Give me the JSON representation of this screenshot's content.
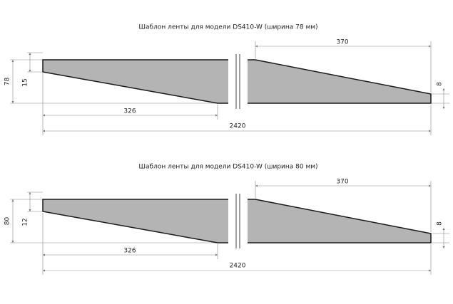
{
  "templates": [
    {
      "title": "Шаблон ленты для модели DS410-W (ширина 78 мм)",
      "height": "78",
      "edge": "15",
      "left_length": "326",
      "total_length": "2420",
      "right_length": "370",
      "end": "8"
    },
    {
      "title": "Шаблон ленты для модели DS410-W (ширина 80 мм)",
      "height": "80",
      "edge": "12",
      "left_length": "326",
      "total_length": "2420",
      "right_length": "370",
      "end": "8"
    }
  ]
}
